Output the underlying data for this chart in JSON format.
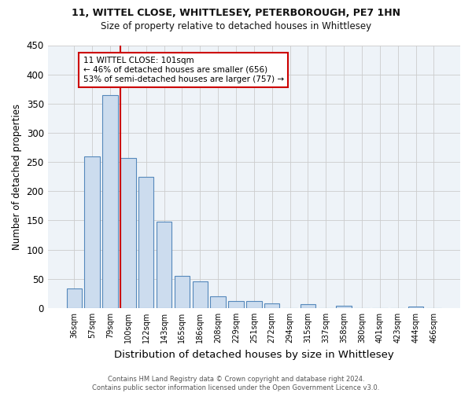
{
  "title1": "11, WITTEL CLOSE, WHITTLESEY, PETERBOROUGH, PE7 1HN",
  "title2": "Size of property relative to detached houses in Whittlesey",
  "xlabel": "Distribution of detached houses by size in Whittlesey",
  "ylabel": "Number of detached properties",
  "footer1": "Contains HM Land Registry data © Crown copyright and database right 2024.",
  "footer2": "Contains public sector information licensed under the Open Government Licence v3.0.",
  "bar_labels": [
    "36sqm",
    "57sqm",
    "79sqm",
    "100sqm",
    "122sqm",
    "143sqm",
    "165sqm",
    "186sqm",
    "208sqm",
    "229sqm",
    "251sqm",
    "272sqm",
    "294sqm",
    "315sqm",
    "337sqm",
    "358sqm",
    "380sqm",
    "401sqm",
    "423sqm",
    "444sqm",
    "466sqm"
  ],
  "bar_values": [
    33,
    260,
    365,
    257,
    225,
    148,
    55,
    45,
    20,
    12,
    12,
    8,
    0,
    6,
    0,
    4,
    0,
    0,
    0,
    3,
    0
  ],
  "bar_color": "#ccdcee",
  "bar_edge_color": "#5588bb",
  "marker_index": 3,
  "marker_line_color": "#cc0000",
  "annotation_text": "11 WITTEL CLOSE: 101sqm\n← 46% of detached houses are smaller (656)\n53% of semi-detached houses are larger (757) →",
  "annotation_box_color": "white",
  "annotation_box_edge_color": "#cc0000",
  "ylim": [
    0,
    450
  ],
  "yticks": [
    0,
    50,
    100,
    150,
    200,
    250,
    300,
    350,
    400,
    450
  ],
  "background_color": "#ffffff",
  "plot_bg_color": "#eef3f8",
  "grid_color": "#cccccc"
}
